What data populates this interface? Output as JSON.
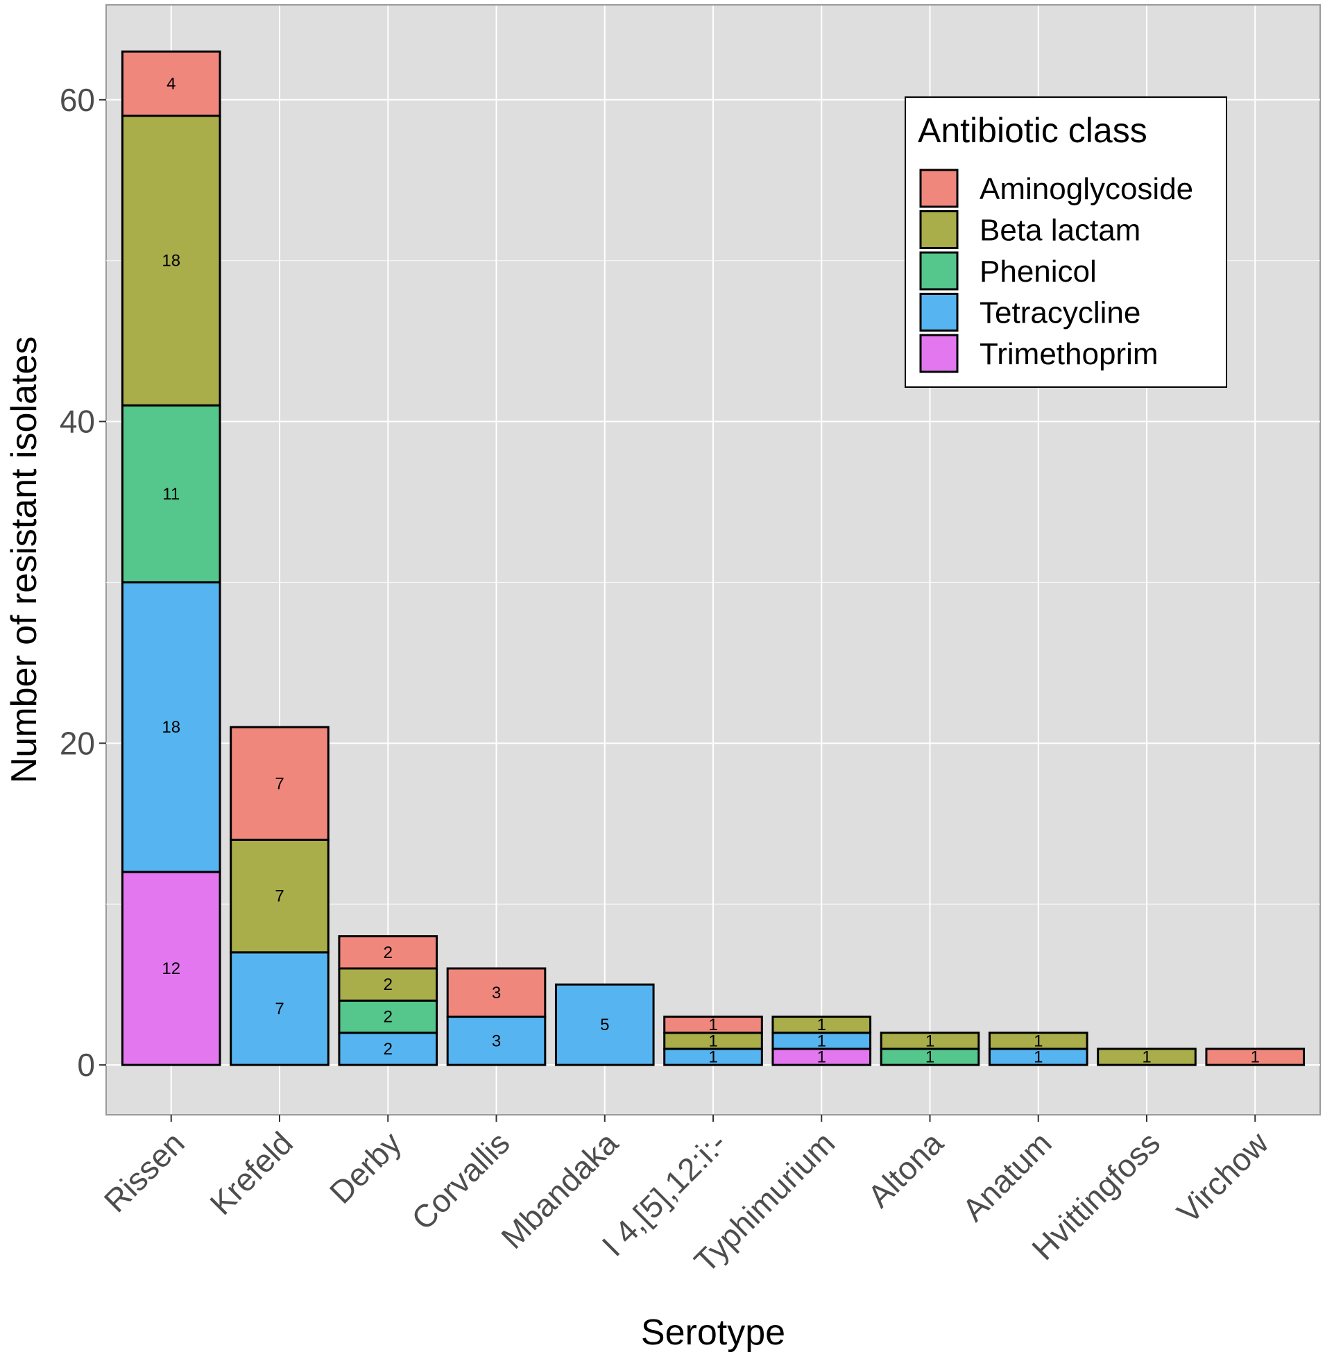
{
  "chart_data": {
    "type": "bar",
    "stacked": true,
    "title": "",
    "xlabel": "Serotype",
    "ylabel": "Number of resistant isolates",
    "ylim": [
      -3.1,
      65.9
    ],
    "yticks": [
      0,
      20,
      40,
      60
    ],
    "grid": true,
    "categories": [
      "Rissen",
      "Krefeld",
      "Derby",
      "Corvallis",
      "Mbandaka",
      "I 4,[5],12:i:-",
      "Typhimurium",
      "Altona",
      "Anatum",
      "Hvittingfoss",
      "Virchow"
    ],
    "legend": {
      "title": "Antibiotic class",
      "position": "top-right"
    },
    "series": [
      {
        "name": "Trimethoprim",
        "color": "#E377F0",
        "values": [
          12,
          0,
          0,
          0,
          0,
          0,
          1,
          0,
          0,
          0,
          0
        ]
      },
      {
        "name": "Tetracycline",
        "color": "#56B5F0",
        "values": [
          18,
          7,
          2,
          3,
          5,
          1,
          1,
          0,
          1,
          0,
          0
        ]
      },
      {
        "name": "Phenicol",
        "color": "#55C68C",
        "values": [
          11,
          0,
          2,
          0,
          0,
          0,
          0,
          1,
          0,
          0,
          0
        ]
      },
      {
        "name": "Beta lactam",
        "color": "#A9AD4A",
        "values": [
          18,
          7,
          2,
          0,
          0,
          1,
          1,
          1,
          1,
          1,
          0
        ]
      },
      {
        "name": "Aminoglycoside",
        "color": "#F0877D",
        "values": [
          4,
          7,
          2,
          3,
          0,
          1,
          0,
          0,
          0,
          0,
          1
        ]
      }
    ],
    "legend_order": [
      "Aminoglycoside",
      "Beta lactam",
      "Phenicol",
      "Tetracycline",
      "Trimethoprim"
    ]
  }
}
